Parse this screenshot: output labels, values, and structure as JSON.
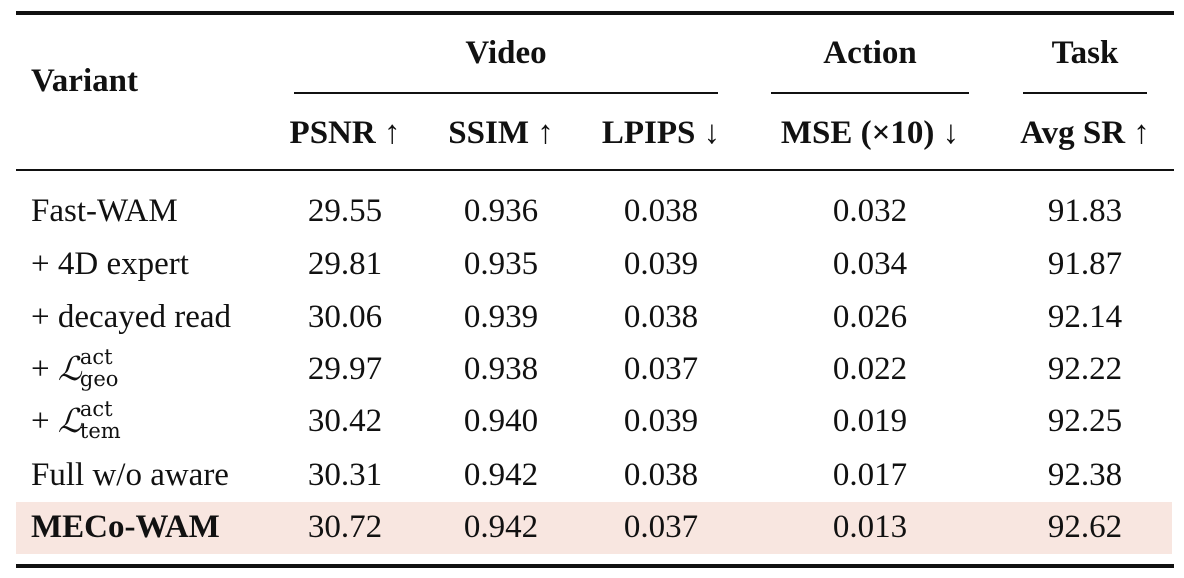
{
  "table": {
    "headers": {
      "variant": "Variant",
      "groups": {
        "video": "Video",
        "action": "Action",
        "task": "Task"
      },
      "columns": {
        "psnr": "PSNR ↑",
        "ssim": "SSIM ↑",
        "lpips": "LPIPS ↓",
        "mse": "MSE (×10) ↓",
        "avg_sr": "Avg SR ↑"
      }
    },
    "rows": [
      {
        "variant": "Fast-WAM",
        "psnr": "29.55",
        "ssim": "0.936",
        "lpips": "0.038",
        "mse": "0.032",
        "avg_sr": "91.83"
      },
      {
        "variant": "+ 4D expert",
        "psnr": "29.81",
        "ssim": "0.935",
        "lpips": "0.039",
        "mse": "0.034",
        "avg_sr": "91.87"
      },
      {
        "variant": "+ decayed read",
        "psnr": "30.06",
        "ssim": "0.939",
        "lpips": "0.038",
        "mse": "0.026",
        "avg_sr": "92.14"
      },
      {
        "variant_prefix": "+ ",
        "loss_symbol": "ℒ",
        "loss_sup": "act",
        "loss_sub": "geo",
        "psnr": "29.97",
        "ssim": "0.938",
        "lpips": "0.037",
        "mse": "0.022",
        "avg_sr": "92.22"
      },
      {
        "variant_prefix": "+ ",
        "loss_symbol": "ℒ",
        "loss_sup": "act",
        "loss_sub": "tem",
        "psnr": "30.42",
        "ssim": "0.940",
        "lpips": "0.039",
        "mse": "0.019",
        "avg_sr": "92.25"
      },
      {
        "variant": "Full w/o aware",
        "psnr": "30.31",
        "ssim": "0.942",
        "lpips": "0.038",
        "mse": "0.017",
        "avg_sr": "92.38"
      },
      {
        "variant": "MECo-WAM",
        "psnr": "30.72",
        "ssim": "0.942",
        "lpips": "0.037",
        "mse": "0.013",
        "avg_sr": "92.62"
      }
    ],
    "highlight_color": "#f8e6e0"
  }
}
